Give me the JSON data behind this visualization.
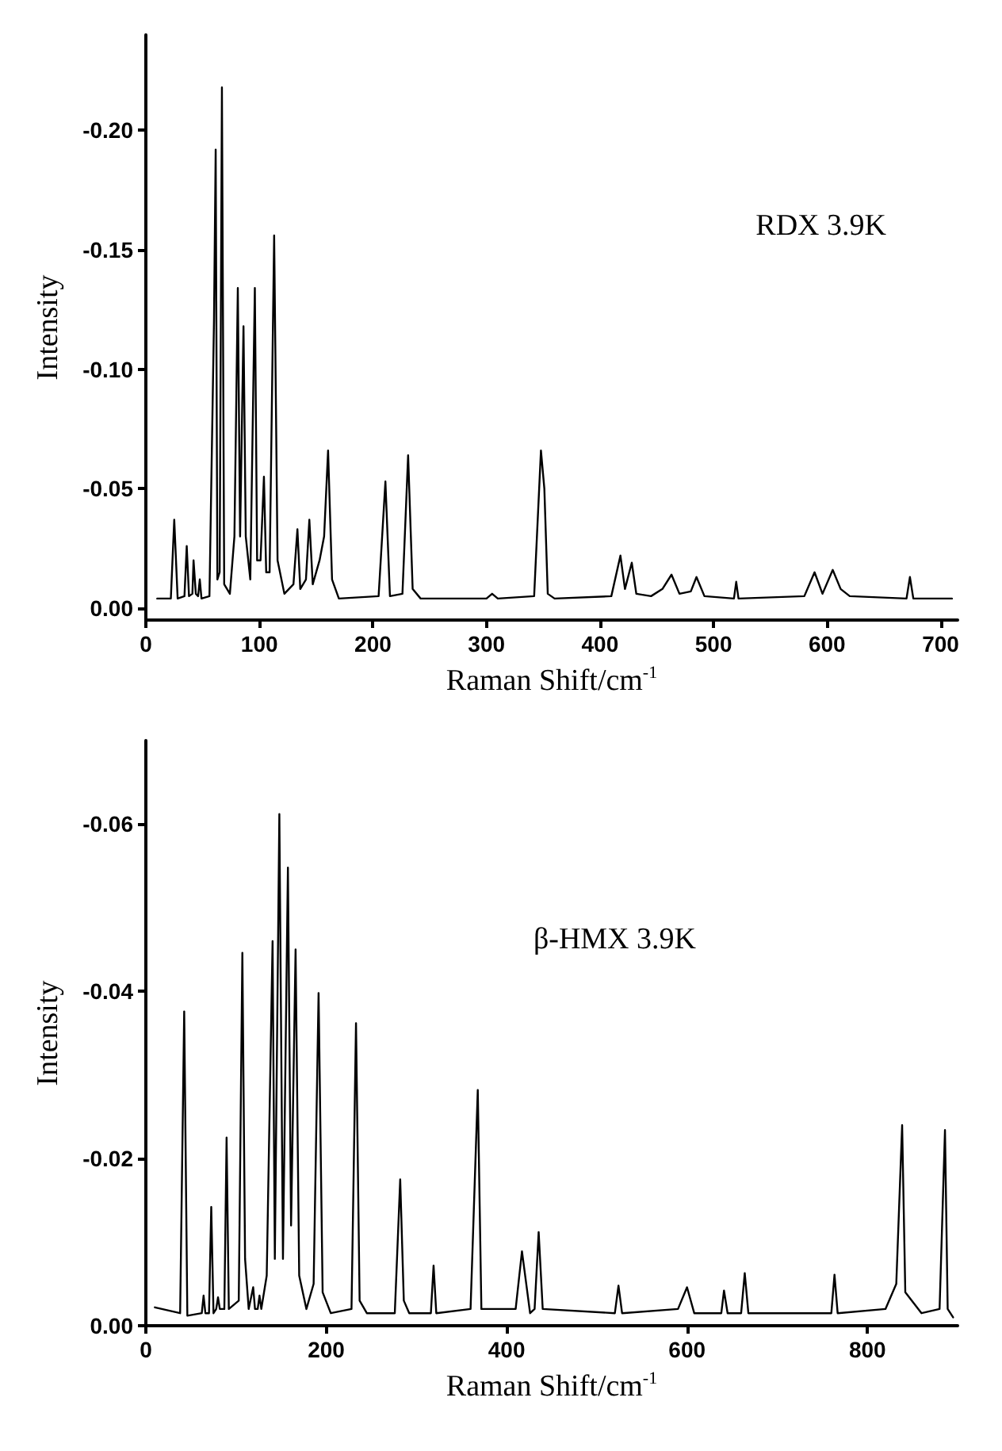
{
  "chart_data": [
    {
      "type": "line",
      "title": "RDX 3.9K",
      "xlabel": "Raman Shift/cm$^{-1}$",
      "ylabel": "Intensity",
      "xlim": [
        0,
        715
      ],
      "ylim": [
        0.005,
        -0.24
      ],
      "xticks": [
        0,
        100,
        200,
        300,
        400,
        500,
        600,
        700
      ],
      "yticks": [
        {
          "value": 0,
          "label": "0.00"
        },
        {
          "value": -0.05,
          "label": "-0.05"
        },
        {
          "value": -0.1,
          "label": "-0.10"
        },
        {
          "value": -0.15,
          "label": "-0.15"
        },
        {
          "value": -0.2,
          "label": "-0.20"
        }
      ],
      "grid": false,
      "marker": "none",
      "line_style": "solid",
      "series": [
        {
          "color": "#000000",
          "x": [
            10,
            22,
            25,
            28,
            34,
            36,
            38,
            41,
            42,
            44,
            46,
            47.5,
            49,
            56,
            60,
            61.5,
            63,
            65,
            67,
            69,
            74,
            78,
            81,
            83,
            86,
            88,
            92,
            96,
            98,
            101,
            104,
            106,
            109,
            113,
            116,
            122,
            130,
            133.5,
            136,
            141,
            144,
            147,
            153,
            157,
            160.5,
            164,
            170,
            205,
            211,
            215,
            226,
            231,
            235,
            242,
            300,
            305,
            310,
            342,
            348,
            351,
            354,
            360,
            410,
            418,
            422,
            428,
            432,
            445,
            455,
            463,
            470,
            480,
            485,
            492,
            518,
            520,
            522,
            580,
            589,
            596,
            605,
            612,
            620,
            670,
            673,
            676,
            710
          ],
          "values": [
            -0.004,
            -0.004,
            -0.037,
            -0.004,
            -0.005,
            -0.026,
            -0.005,
            -0.006,
            -0.02,
            -0.006,
            -0.005,
            -0.012,
            -0.004,
            -0.005,
            -0.12,
            -0.192,
            -0.012,
            -0.015,
            -0.218,
            -0.01,
            -0.006,
            -0.03,
            -0.134,
            -0.03,
            -0.118,
            -0.03,
            -0.012,
            -0.134,
            -0.02,
            -0.02,
            -0.055,
            -0.015,
            -0.015,
            -0.156,
            -0.02,
            -0.006,
            -0.01,
            -0.033,
            -0.008,
            -0.012,
            -0.037,
            -0.01,
            -0.02,
            -0.03,
            -0.066,
            -0.012,
            -0.004,
            -0.005,
            -0.053,
            -0.005,
            -0.006,
            -0.064,
            -0.008,
            -0.004,
            -0.004,
            -0.006,
            -0.004,
            -0.005,
            -0.066,
            -0.05,
            -0.006,
            -0.004,
            -0.005,
            -0.022,
            -0.008,
            -0.019,
            -0.006,
            -0.005,
            -0.008,
            -0.014,
            -0.006,
            -0.007,
            -0.013,
            -0.005,
            -0.004,
            -0.011,
            -0.004,
            -0.005,
            -0.015,
            -0.006,
            -0.016,
            -0.008,
            -0.005,
            -0.004,
            -0.013,
            -0.004,
            -0.004
          ]
        }
      ]
    },
    {
      "type": "line",
      "title": "β-HMX 3.9K",
      "xlabel": "Raman Shift/cm$^{-1}$",
      "ylabel": "Intensity",
      "xlim": [
        0,
        900
      ],
      "ylim": [
        0,
        -0.07
      ],
      "xticks": [
        0,
        200,
        400,
        600,
        800
      ],
      "yticks": [
        {
          "value": 0,
          "label": "0.00"
        },
        {
          "value": -0.02,
          "label": "-0.02"
        },
        {
          "value": -0.04,
          "label": "-0.04"
        },
        {
          "value": -0.06,
          "label": "-0.06"
        }
      ],
      "grid": false,
      "marker": "none",
      "line_style": "solid",
      "series": [
        {
          "color": "#000000",
          "x": [
            10,
            38,
            42.5,
            46,
            62,
            64,
            66,
            70,
            72.5,
            75,
            78,
            80,
            82,
            87,
            89.5,
            92,
            103,
            107,
            110,
            114,
            119,
            121,
            124,
            126,
            128,
            134,
            140.5,
            143,
            148,
            152,
            157.5,
            161,
            166,
            170,
            178,
            186,
            191.5,
            196,
            205,
            228,
            233,
            237,
            245,
            276,
            282,
            286,
            292,
            316,
            319,
            322,
            360,
            368,
            372,
            410,
            417,
            426,
            431,
            435.5,
            440,
            520,
            524,
            528,
            590,
            600,
            608,
            638,
            641,
            645,
            660,
            664,
            668,
            760,
            763.5,
            767,
            820,
            832,
            838.5,
            842,
            860,
            880,
            886,
            889,
            895
          ],
          "values": [
            -0.0022,
            -0.0015,
            -0.0376,
            -0.0012,
            -0.0015,
            -0.0036,
            -0.0015,
            -0.0015,
            -0.0142,
            -0.0015,
            -0.002,
            -0.0034,
            -0.002,
            -0.002,
            -0.0225,
            -0.002,
            -0.003,
            -0.0446,
            -0.008,
            -0.002,
            -0.0046,
            -0.002,
            -0.002,
            -0.0036,
            -0.002,
            -0.006,
            -0.046,
            -0.008,
            -0.0612,
            -0.008,
            -0.0548,
            -0.012,
            -0.045,
            -0.006,
            -0.002,
            -0.005,
            -0.0398,
            -0.004,
            -0.0015,
            -0.002,
            -0.0362,
            -0.003,
            -0.0015,
            -0.0015,
            -0.0175,
            -0.003,
            -0.0015,
            -0.0015,
            -0.0072,
            -0.0015,
            -0.002,
            -0.0282,
            -0.002,
            -0.002,
            -0.0089,
            -0.0015,
            -0.002,
            -0.0112,
            -0.002,
            -0.0015,
            -0.0048,
            -0.0015,
            -0.002,
            -0.0046,
            -0.0015,
            -0.0015,
            -0.0042,
            -0.0015,
            -0.0015,
            -0.0063,
            -0.0015,
            -0.0015,
            -0.0061,
            -0.0015,
            -0.002,
            -0.005,
            -0.024,
            -0.004,
            -0.0015,
            -0.002,
            -0.0234,
            -0.002,
            -0.001
          ]
        }
      ]
    }
  ]
}
